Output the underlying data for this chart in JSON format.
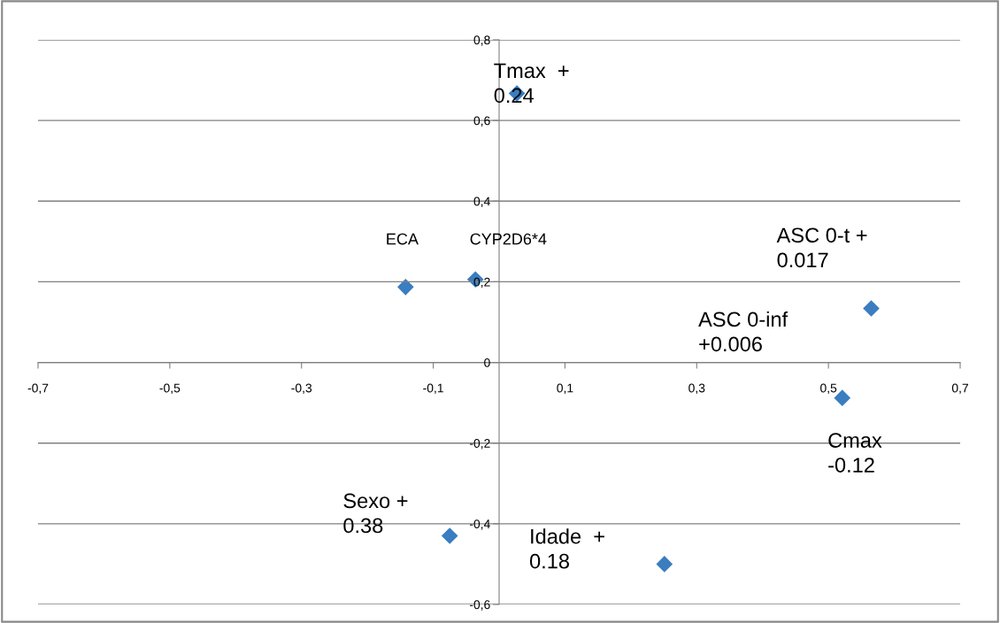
{
  "chart_data": {
    "type": "scatter",
    "marker": "diamond",
    "grid": "y",
    "series": [
      {
        "color": "#3a7dc0",
        "x": [
          0.027,
          -0.142,
          -0.036,
          0.565,
          0.521,
          -0.075,
          0.251
        ],
        "values": [
          0.667,
          0.187,
          0.206,
          0.134,
          -0.088,
          -0.43,
          -0.5
        ]
      }
    ],
    "xlim": [
      -0.7,
      0.7
    ],
    "xticks": [
      {
        "value": -0.7,
        "label": "-0,7"
      },
      {
        "value": -0.5,
        "label": "-0,5"
      },
      {
        "value": -0.3,
        "label": "-0,3"
      },
      {
        "value": -0.1,
        "label": "-0,1"
      },
      {
        "value": 0.1,
        "label": "0,1"
      },
      {
        "value": 0.3,
        "label": "0,3"
      },
      {
        "value": 0.5,
        "label": "0,5"
      },
      {
        "value": 0.7,
        "label": "0,7"
      }
    ],
    "ylim": [
      -0.6,
      0.8
    ],
    "yticks": [
      {
        "value": -0.6,
        "label": "-0,6"
      },
      {
        "value": -0.4,
        "label": "-0,4"
      },
      {
        "value": -0.2,
        "label": "-0,2"
      },
      0,
      {
        "value": 0.2,
        "label": "0,2"
      },
      {
        "value": 0.4,
        "label": "0,4"
      },
      {
        "value": 0.6,
        "label": "0,6"
      },
      {
        "value": 0.8,
        "label": "0,8"
      }
    ],
    "annotations": [
      {
        "text": "Tmax  +\n0.24",
        "x": 0.027,
        "y": 0.667
      },
      "ECA",
      "CYP2D6*4",
      {
        "text": "ASC 0-t +\n0.017",
        "x": 0.565,
        "y": 0.134
      },
      "ASC 0-inf\n+0.006",
      {
        "text": "Cmax\n-0.12",
        "x": 0.521,
        "y": -0.088
      },
      {
        "text": "Sexo +\n0.38",
        "x": -0.075,
        "y": -0.43
      },
      {
        "text": "Idade  +\n0.18",
        "x": 0.251,
        "y": -0.5
      }
    ]
  }
}
